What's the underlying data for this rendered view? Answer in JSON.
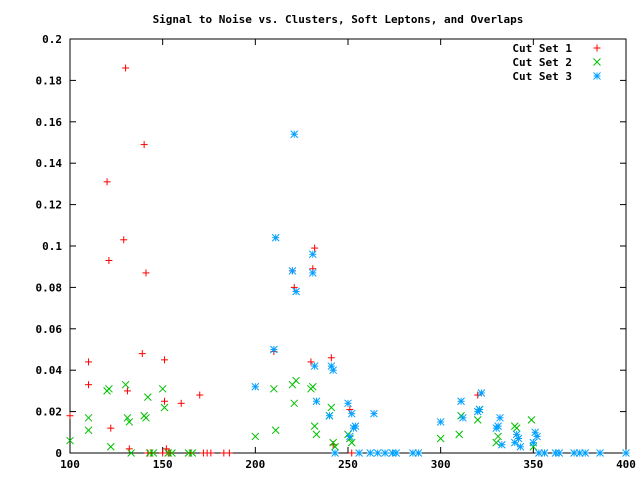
{
  "chart_data": {
    "type": "scatter",
    "title": "Signal to Noise vs. Clusters, Soft Leptons, and Overlaps",
    "xlabel": "",
    "ylabel": "",
    "xlim": [
      100,
      400
    ],
    "ylim": [
      0,
      0.2
    ],
    "x_ticks": [
      100,
      150,
      200,
      250,
      300,
      350,
      400
    ],
    "x_tick_labels": [
      "100",
      "150",
      "200",
      "250",
      "300",
      "350",
      "400"
    ],
    "y_ticks": [
      0,
      0.02,
      0.04,
      0.06,
      0.08,
      0.1,
      0.12,
      0.14,
      0.16,
      0.18,
      0.2
    ],
    "y_tick_labels": [
      "0",
      "0.02",
      "0.04",
      "0.06",
      "0.08",
      "0.1",
      "0.12",
      "0.14",
      "0.16",
      "0.18",
      "0.2"
    ],
    "grid": false,
    "legend": "top-right",
    "series": [
      {
        "name": "Cut Set 1",
        "marker": "plus",
        "color": "#ff0000",
        "points": [
          [
            100,
            0.018
          ],
          [
            110,
            0.044
          ],
          [
            110,
            0.033
          ],
          [
            120,
            0.131
          ],
          [
            121,
            0.093
          ],
          [
            122,
            0.012
          ],
          [
            129,
            0.103
          ],
          [
            130,
            0.186
          ],
          [
            131,
            0.03
          ],
          [
            132,
            0.002
          ],
          [
            139,
            0.048
          ],
          [
            140,
            0.149
          ],
          [
            141,
            0.087
          ],
          [
            142,
            0.0
          ],
          [
            144,
            0.0
          ],
          [
            150,
            0.0
          ],
          [
            151,
            0.045
          ],
          [
            151,
            0.025
          ],
          [
            152,
            0.002
          ],
          [
            153,
            0.0
          ],
          [
            154,
            0.0
          ],
          [
            160,
            0.024
          ],
          [
            165,
            0.0
          ],
          [
            170,
            0.028
          ],
          [
            172,
            0.0
          ],
          [
            174,
            0.0
          ],
          [
            176,
            0.0
          ],
          [
            183,
            0.0
          ],
          [
            186,
            0.0
          ],
          [
            210,
            0.049
          ],
          [
            220,
            0.088
          ],
          [
            221,
            0.08
          ],
          [
            230,
            0.044
          ],
          [
            231,
            0.089
          ],
          [
            232,
            0.099
          ],
          [
            241,
            0.046
          ],
          [
            242,
            0.004
          ],
          [
            251,
            0.021
          ],
          [
            252,
            0.0
          ],
          [
            320,
            0.028
          ]
        ]
      },
      {
        "name": "Cut Set 2",
        "marker": "cross",
        "color": "#00c000",
        "points": [
          [
            100,
            0.006
          ],
          [
            110,
            0.017
          ],
          [
            110,
            0.011
          ],
          [
            120,
            0.03
          ],
          [
            121,
            0.031
          ],
          [
            122,
            0.003
          ],
          [
            130,
            0.033
          ],
          [
            131,
            0.017
          ],
          [
            132,
            0.015
          ],
          [
            133,
            0.0
          ],
          [
            140,
            0.018
          ],
          [
            141,
            0.017
          ],
          [
            142,
            0.027
          ],
          [
            143,
            0.0
          ],
          [
            145,
            0.0
          ],
          [
            150,
            0.031
          ],
          [
            151,
            0.022
          ],
          [
            153,
            0.0
          ],
          [
            155,
            0.0
          ],
          [
            164,
            0.0
          ],
          [
            166,
            0.0
          ],
          [
            200,
            0.008
          ],
          [
            210,
            0.031
          ],
          [
            211,
            0.011
          ],
          [
            220,
            0.033
          ],
          [
            221,
            0.024
          ],
          [
            222,
            0.035
          ],
          [
            230,
            0.031
          ],
          [
            231,
            0.032
          ],
          [
            232,
            0.013
          ],
          [
            233,
            0.009
          ],
          [
            240,
            0.018
          ],
          [
            241,
            0.022
          ],
          [
            242,
            0.005
          ],
          [
            243,
            0.003
          ],
          [
            250,
            0.009
          ],
          [
            251,
            0.007
          ],
          [
            252,
            0.005
          ],
          [
            300,
            0.007
          ],
          [
            310,
            0.009
          ],
          [
            311,
            0.018
          ],
          [
            320,
            0.016
          ],
          [
            321,
            0.021
          ],
          [
            330,
            0.005
          ],
          [
            331,
            0.008
          ],
          [
            340,
            0.013
          ],
          [
            341,
            0.012
          ],
          [
            349,
            0.016
          ],
          [
            350,
            0.003
          ]
        ]
      },
      {
        "name": "Cut Set 3",
        "marker": "star",
        "color": "#00a0ff",
        "points": [
          [
            200,
            0.032
          ],
          [
            210,
            0.05
          ],
          [
            211,
            0.104
          ],
          [
            220,
            0.088
          ],
          [
            221,
            0.154
          ],
          [
            222,
            0.078
          ],
          [
            231,
            0.096
          ],
          [
            231,
            0.087
          ],
          [
            232,
            0.042
          ],
          [
            233,
            0.025
          ],
          [
            240,
            0.018
          ],
          [
            241,
            0.042
          ],
          [
            242,
            0.04
          ],
          [
            243,
            0.0
          ],
          [
            250,
            0.024
          ],
          [
            251,
            0.008
          ],
          [
            252,
            0.019
          ],
          [
            253,
            0.012
          ],
          [
            254,
            0.013
          ],
          [
            256,
            0.0
          ],
          [
            262,
            0.0
          ],
          [
            264,
            0.019
          ],
          [
            266,
            0.0
          ],
          [
            270,
            0.0
          ],
          [
            274,
            0.0
          ],
          [
            276,
            0.0
          ],
          [
            285,
            0.0
          ],
          [
            288,
            0.0
          ],
          [
            300,
            0.015
          ],
          [
            311,
            0.025
          ],
          [
            312,
            0.017
          ],
          [
            320,
            0.02
          ],
          [
            321,
            0.021
          ],
          [
            322,
            0.029
          ],
          [
            330,
            0.012
          ],
          [
            331,
            0.013
          ],
          [
            332,
            0.017
          ],
          [
            333,
            0.004
          ],
          [
            340,
            0.005
          ],
          [
            341,
            0.009
          ],
          [
            342,
            0.007
          ],
          [
            343,
            0.003
          ],
          [
            350,
            0.005
          ],
          [
            351,
            0.01
          ],
          [
            352,
            0.008
          ],
          [
            353,
            0.0
          ],
          [
            356,
            0.0
          ],
          [
            362,
            0.0
          ],
          [
            364,
            0.0
          ],
          [
            372,
            0.0
          ],
          [
            375,
            0.0
          ],
          [
            378,
            0.0
          ],
          [
            386,
            0.0
          ],
          [
            400,
            0.0
          ]
        ]
      }
    ]
  }
}
